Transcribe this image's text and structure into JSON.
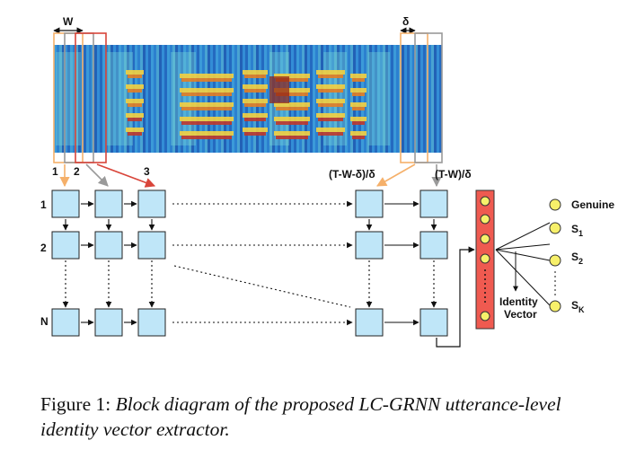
{
  "spectrogram_labels": {
    "window": "W",
    "shift": "δ"
  },
  "column_labels": [
    "1",
    "2",
    "3",
    "(T-W-δ)/δ",
    "(T-W)/δ"
  ],
  "row_labels": [
    "1",
    "2",
    "N"
  ],
  "outputs": [
    "Genuine",
    "S1",
    "S2",
    "SK"
  ],
  "output_subscripts": [
    "",
    "1",
    "2",
    "K"
  ],
  "output_names": [
    "Genuine",
    "S",
    "S",
    "S"
  ],
  "identity_label": [
    "Identity",
    "Vector"
  ],
  "caption": {
    "prefix": "Figure 1:",
    "text": "Block diagram of the proposed LC-GRNN utterance-level identity vector extractor."
  },
  "colors": {
    "cell_fill": "#bfe6f8",
    "vector_fill": "#ef5a50",
    "node_fill": "#f7f06a",
    "window_orange": "#f5b06a",
    "window_gray": "#9a9a9a",
    "window_red": "#d9453a"
  }
}
